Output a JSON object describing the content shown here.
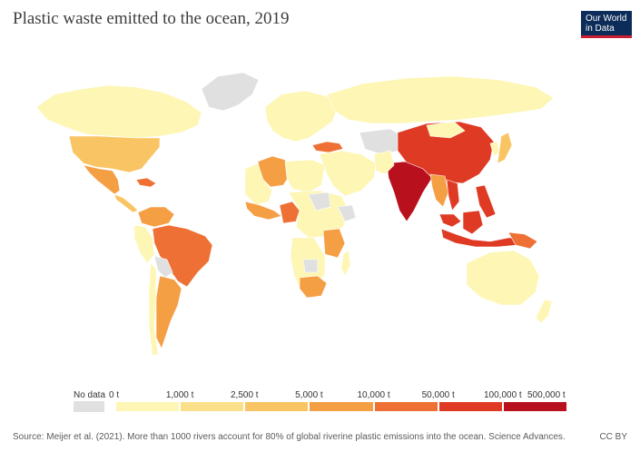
{
  "title": "Plastic waste emitted to the ocean, 2019",
  "logo": {
    "line1": "Our World",
    "line2": "in Data"
  },
  "legend": {
    "no_data_label": "No data",
    "ticks": [
      "0 t",
      "1,000 t",
      "2,500 t",
      "5,000 t",
      "10,000 t",
      "50,000 t",
      "100,000 t",
      "500,000 t"
    ],
    "bin_colors": [
      "#fdf6b4",
      "#fbe08a",
      "#f9c463",
      "#f59f45",
      "#ee7034",
      "#df3a24",
      "#b8111d"
    ],
    "no_data_color": "#e0e0e0"
  },
  "footer": {
    "source": "Source: Meijer et al. (2021). More than 1000 rivers account for 80% of global riverine plastic emissions into the ocean. Science Advances.",
    "license": "CC BY"
  }
}
